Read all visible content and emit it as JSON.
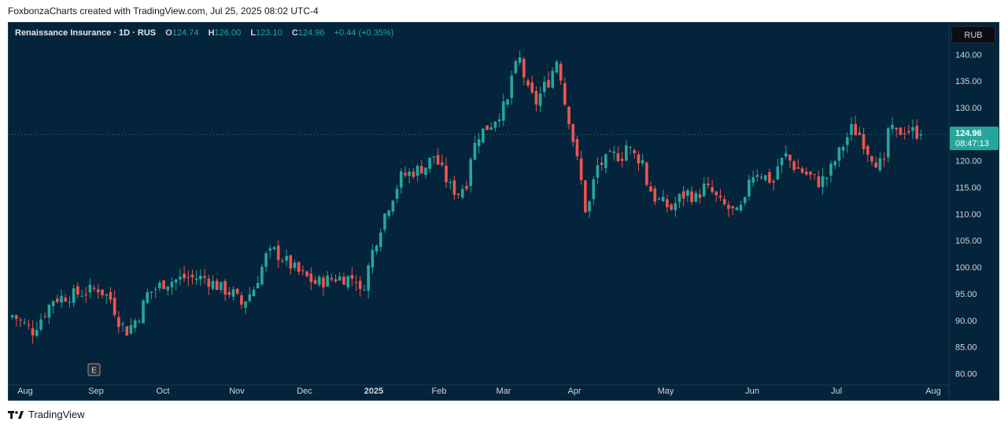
{
  "caption": "FoxbonzaCharts created with TradingView.com, Jul 25, 2025 08:02 UTC-4",
  "brand": "TradingView",
  "legend": {
    "symbol": "Renaissance Insurance · 1D · RUS",
    "open_label": "O",
    "open": "124.74",
    "high_label": "H",
    "high": "126.00",
    "low_label": "L",
    "low": "123.10",
    "close_label": "C",
    "close": "124.96",
    "change": "+0.44 (+0.35%)"
  },
  "currency": "RUB",
  "price_tag": {
    "price": "124.96",
    "countdown": "08:47:13"
  },
  "earnings_marker": "E",
  "colors": {
    "up": "#26a69a",
    "down": "#ef5350",
    "bg": "#03243a",
    "text": "#d1d4dc"
  },
  "chart_data": {
    "type": "candlestick",
    "ylim": [
      78,
      143
    ],
    "y_ticks": [
      "140.00",
      "135.00",
      "130.00",
      "125.00",
      "120.00",
      "115.00",
      "110.00",
      "105.00",
      "100.00",
      "95.00",
      "90.00",
      "85.00",
      "80.00"
    ],
    "x_ticks": [
      "Aug",
      "Sep",
      "Oct",
      "Nov",
      "Dec",
      "2025",
      "Feb",
      "Mar",
      "Apr",
      "May",
      "Jun",
      "Jul",
      "Aug"
    ],
    "last_price": 124.96,
    "close_path": [
      [
        0,
        91
      ],
      [
        5,
        88
      ],
      [
        10,
        94
      ],
      [
        16,
        95
      ],
      [
        21,
        96
      ],
      [
        24,
        94
      ],
      [
        26,
        90
      ],
      [
        28,
        88
      ],
      [
        31,
        91
      ],
      [
        33,
        95
      ],
      [
        37,
        97
      ],
      [
        42,
        98
      ],
      [
        47,
        98
      ],
      [
        51,
        96
      ],
      [
        54,
        95
      ],
      [
        56,
        93
      ],
      [
        59,
        96
      ],
      [
        62,
        102
      ],
      [
        64,
        103
      ],
      [
        67,
        101
      ],
      [
        70,
        99
      ],
      [
        74,
        97
      ],
      [
        79,
        98
      ],
      [
        84,
        98
      ],
      [
        85,
        95
      ],
      [
        86,
        97
      ],
      [
        88,
        103
      ],
      [
        91,
        110
      ],
      [
        95,
        117
      ],
      [
        98,
        118
      ],
      [
        101,
        119
      ],
      [
        103,
        121
      ],
      [
        105,
        118
      ],
      [
        107,
        115
      ],
      [
        109,
        114
      ],
      [
        111,
        116
      ],
      [
        112,
        121
      ],
      [
        114,
        125
      ],
      [
        117,
        127
      ],
      [
        119,
        129
      ],
      [
        121,
        131
      ],
      [
        122,
        136
      ],
      [
        124,
        139
      ],
      [
        126,
        133
      ],
      [
        128,
        131
      ],
      [
        130,
        134
      ],
      [
        131,
        135
      ],
      [
        132,
        137
      ],
      [
        133,
        139
      ],
      [
        134,
        136
      ],
      [
        135,
        131
      ],
      [
        136,
        128
      ],
      [
        137,
        124
      ],
      [
        138,
        120
      ],
      [
        139,
        116
      ],
      [
        140,
        111
      ],
      [
        141,
        112
      ],
      [
        142,
        116
      ],
      [
        143,
        119
      ],
      [
        145,
        120
      ],
      [
        147,
        121
      ],
      [
        149,
        121
      ],
      [
        150,
        123
      ],
      [
        152,
        121
      ],
      [
        154,
        120
      ],
      [
        155,
        116
      ],
      [
        157,
        113
      ],
      [
        159,
        112
      ],
      [
        161,
        111
      ],
      [
        163,
        113
      ],
      [
        165,
        114
      ],
      [
        167,
        113
      ],
      [
        169,
        115
      ],
      [
        171,
        114
      ],
      [
        173,
        112
      ],
      [
        175,
        111
      ],
      [
        177,
        110
      ],
      [
        179,
        112
      ],
      [
        180,
        117
      ],
      [
        182,
        118
      ],
      [
        184,
        117
      ],
      [
        186,
        116
      ],
      [
        187,
        119
      ],
      [
        189,
        121
      ],
      [
        191,
        119
      ],
      [
        193,
        118
      ],
      [
        195,
        117
      ],
      [
        197,
        116
      ],
      [
        199,
        117
      ],
      [
        201,
        120
      ],
      [
        203,
        123
      ],
      [
        205,
        126
      ],
      [
        207,
        125
      ],
      [
        209,
        122
      ],
      [
        211,
        120
      ],
      [
        213,
        119
      ],
      [
        214,
        126
      ],
      [
        216,
        125
      ],
      [
        218,
        126
      ],
      [
        220,
        125.5
      ],
      [
        222,
        124.96
      ]
    ]
  }
}
